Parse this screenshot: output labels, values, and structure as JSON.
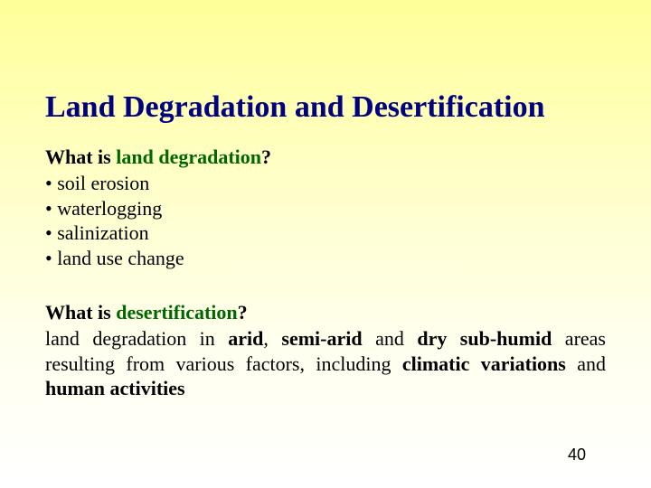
{
  "title": "Land Degradation and Desertification",
  "section1": {
    "heading_prefix": "What is ",
    "heading_term": "land degradation",
    "heading_suffix": "?",
    "bullets": [
      "• soil erosion",
      "• waterlogging",
      "• salinization",
      "• land use change"
    ]
  },
  "section2": {
    "heading_prefix": "What is ",
    "heading_term": "desertification",
    "heading_suffix": "?",
    "p1": "land degradation in ",
    "p2": "arid",
    "p3": ", ",
    "p4": "semi-arid",
    "p5": " and ",
    "p6": "dry sub-humid",
    "p7": " areas resulting from various factors, including ",
    "p8": "climatic variations",
    "p9": " and ",
    "p10": "human activities"
  },
  "page_number": "40",
  "colors": {
    "title": "#000080",
    "term": "#006600",
    "bg_top": "#ffff99",
    "bg_bottom": "#ffffff"
  },
  "fontsize": {
    "title": 34,
    "body": 22,
    "page_number": 18
  }
}
